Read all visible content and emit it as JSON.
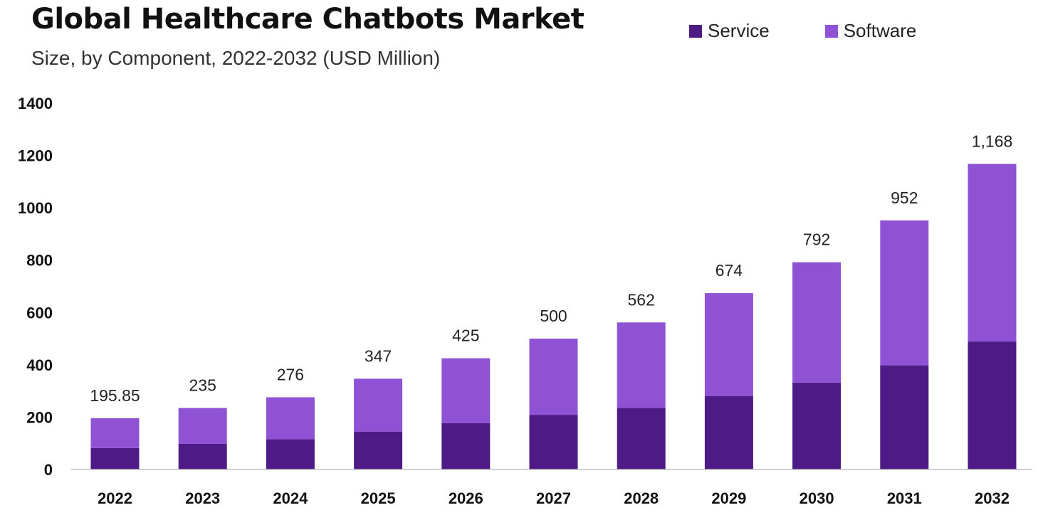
{
  "chart_data": {
    "type": "bar",
    "stacked": true,
    "title": "Global Healthcare Chatbots Market",
    "subtitle": "Size, by Component, 2022-2032 (USD Million)",
    "categories": [
      "2022",
      "2023",
      "2024",
      "2025",
      "2026",
      "2027",
      "2028",
      "2029",
      "2030",
      "2031",
      "2032"
    ],
    "series": [
      {
        "name": "Service",
        "color": "#4d1a86",
        "values": [
          82,
          98,
          116,
          145,
          177,
          209,
          235,
          281,
          332,
          398,
          489
        ]
      },
      {
        "name": "Software",
        "color": "#8f52d4",
        "values": [
          113.85,
          137,
          160,
          202,
          248,
          291,
          327,
          393,
          460,
          554,
          679
        ]
      }
    ],
    "totals": [
      "195.85",
      "235",
      "276",
      "347",
      "425",
      "500",
      "562",
      "674",
      "792",
      "952",
      "1,168"
    ],
    "yticks": [
      "0",
      "200",
      "400",
      "600",
      "800",
      "1000",
      "1200",
      "1400"
    ],
    "ylim": [
      0,
      1400
    ],
    "xlabel": "",
    "ylabel": "",
    "legend_position": "top-right",
    "grid": false
  }
}
